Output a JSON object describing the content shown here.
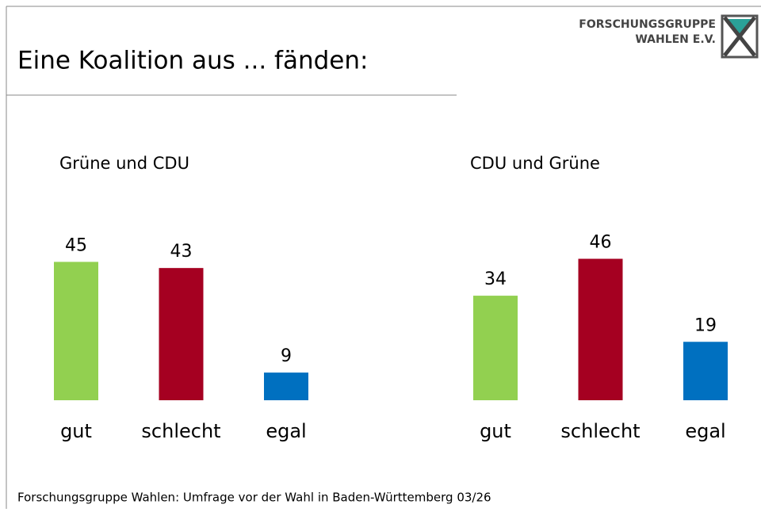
{
  "title": "Eine Koalition aus ... fänden:",
  "logo": [
    "FORSCHUNGSGRUPPE",
    "WAHLEN E.V."
  ],
  "footer": "Forschungsgruppe Wahlen: Umfrage vor der Wahl in Baden-Württemberg 03/26",
  "chart_data": [
    {
      "type": "bar",
      "title": "Grüne und CDU",
      "categories": [
        "gut",
        "schlecht",
        "egal"
      ],
      "values": [
        45,
        43,
        9
      ],
      "colors": [
        "#92d050",
        "#a50021",
        "#0070c0"
      ]
    },
    {
      "type": "bar",
      "title": "CDU und Grüne",
      "categories": [
        "gut",
        "schlecht",
        "egal"
      ],
      "values": [
        34,
        46,
        19
      ],
      "colors": [
        "#92d050",
        "#a50021",
        "#0070c0"
      ]
    }
  ]
}
